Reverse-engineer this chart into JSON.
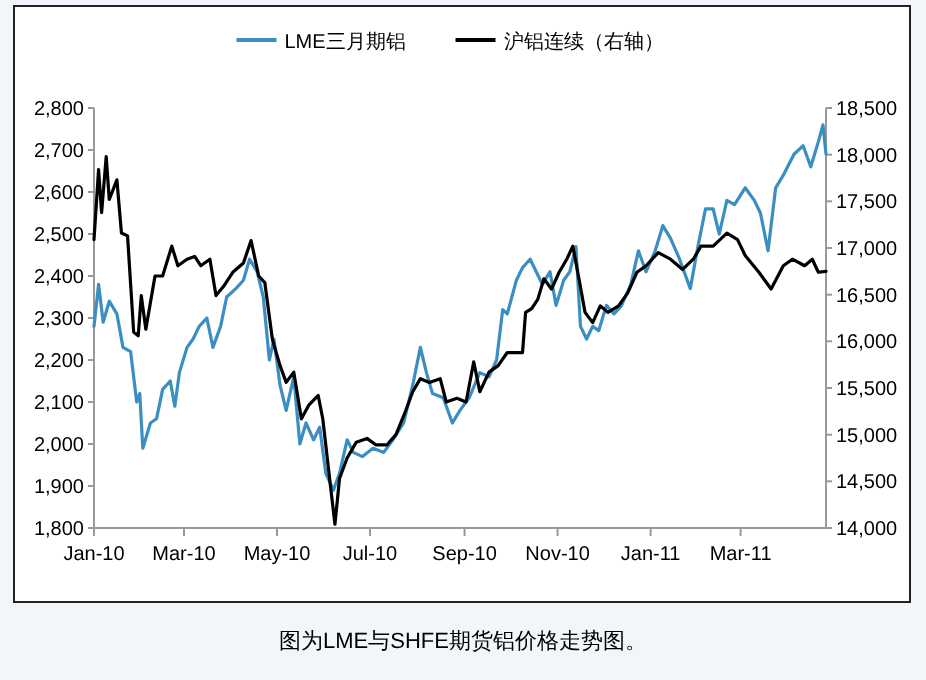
{
  "chart_data": {
    "type": "line",
    "series": [
      {
        "name": "LME三月期铝",
        "color": "#3b8ec2",
        "x": [
          "2010-01-01",
          "2010-01-04",
          "2010-01-07",
          "2010-01-11",
          "2010-01-16",
          "2010-01-20",
          "2010-01-25",
          "2010-01-29",
          "2010-01-31",
          "2010-02-02",
          "2010-02-07",
          "2010-02-11",
          "2010-02-15",
          "2010-02-20",
          "2010-02-23",
          "2010-02-26",
          "2010-03-03",
          "2010-03-07",
          "2010-03-11",
          "2010-03-16",
          "2010-03-20",
          "2010-03-25",
          "2010-03-29",
          "2010-04-04",
          "2010-04-09",
          "2010-04-13",
          "2010-04-18",
          "2010-04-22",
          "2010-04-26",
          "2010-04-29",
          "2010-05-03",
          "2010-05-07",
          "2010-05-12",
          "2010-05-16",
          "2010-05-20",
          "2010-05-25",
          "2010-05-29",
          "2010-06-02",
          "2010-06-07",
          "2010-06-11",
          "2010-06-16",
          "2010-06-20",
          "2010-06-26",
          "2010-07-03",
          "2010-07-10",
          "2010-07-16",
          "2010-07-23",
          "2010-07-29",
          "2010-08-03",
          "2010-08-07",
          "2010-08-11",
          "2010-08-18",
          "2010-08-24",
          "2010-08-29",
          "2010-09-04",
          "2010-09-11",
          "2010-09-17",
          "2010-09-22",
          "2010-09-26",
          "2010-09-29",
          "2010-10-05",
          "2010-10-09",
          "2010-10-14",
          "2010-10-18",
          "2010-10-22",
          "2010-10-27",
          "2010-10-31",
          "2010-11-05",
          "2010-11-09",
          "2010-11-13",
          "2010-11-16",
          "2010-11-20",
          "2010-11-24",
          "2010-11-28",
          "2010-12-03",
          "2010-12-08",
          "2010-12-13",
          "2010-12-19",
          "2010-12-24",
          "2010-12-29",
          "2011-01-04",
          "2011-01-09",
          "2011-01-14",
          "2011-01-20",
          "2011-01-27",
          "2011-02-01",
          "2011-02-06",
          "2011-02-11",
          "2011-02-15",
          "2011-02-20",
          "2011-02-25",
          "2011-03-04",
          "2011-03-10",
          "2011-03-14",
          "2011-03-19",
          "2011-03-24",
          "2011-03-29",
          "2011-04-05",
          "2011-04-11",
          "2011-04-16",
          "2011-04-21",
          "2011-04-24",
          "2011-04-26"
        ],
        "values": [
          2280,
          2380,
          2290,
          2340,
          2310,
          2230,
          2220,
          2100,
          2120,
          1990,
          2050,
          2060,
          2130,
          2150,
          2090,
          2170,
          2230,
          2250,
          2280,
          2300,
          2230,
          2280,
          2350,
          2370,
          2390,
          2440,
          2410,
          2350,
          2200,
          2250,
          2140,
          2080,
          2160,
          2000,
          2050,
          2010,
          2040,
          1930,
          1890,
          1930,
          2010,
          1980,
          1970,
          1990,
          1980,
          2010,
          2050,
          2140,
          2230,
          2170,
          2120,
          2110,
          2050,
          2080,
          2110,
          2170,
          2160,
          2200,
          2320,
          2310,
          2390,
          2420,
          2440,
          2410,
          2380,
          2410,
          2330,
          2390,
          2410,
          2470,
          2280,
          2250,
          2280,
          2270,
          2330,
          2310,
          2330,
          2380,
          2460,
          2410,
          2460,
          2520,
          2490,
          2440,
          2370,
          2470,
          2560,
          2560,
          2500,
          2580,
          2570,
          2610,
          2580,
          2550,
          2460,
          2610,
          2640,
          2690,
          2710,
          2660,
          2720,
          2760,
          2690
        ]
      },
      {
        "name": "沪铝连续（右轴）",
        "color": "#000000",
        "axis": "y2",
        "x": [
          "2010-01-01",
          "2010-01-04",
          "2010-01-06",
          "2010-01-09",
          "2010-01-11",
          "2010-01-16",
          "2010-01-19",
          "2010-01-23",
          "2010-01-27",
          "2010-01-30",
          "2010-02-01",
          "2010-02-04",
          "2010-02-10",
          "2010-02-15",
          "2010-02-21",
          "2010-02-25",
          "2010-03-03",
          "2010-03-08",
          "2010-03-12",
          "2010-03-18",
          "2010-03-22",
          "2010-03-27",
          "2010-04-02",
          "2010-04-09",
          "2010-04-14",
          "2010-04-19",
          "2010-04-23",
          "2010-04-28",
          "2010-05-03",
          "2010-05-07",
          "2010-05-12",
          "2010-05-17",
          "2010-05-22",
          "2010-05-28",
          "2010-05-31",
          "2010-06-05",
          "2010-06-08",
          "2010-06-11",
          "2010-06-16",
          "2010-06-22",
          "2010-06-29",
          "2010-07-05",
          "2010-07-12",
          "2010-07-18",
          "2010-07-24",
          "2010-07-29",
          "2010-08-03",
          "2010-08-09",
          "2010-08-16",
          "2010-08-20",
          "2010-08-27",
          "2010-09-02",
          "2010-09-07",
          "2010-09-11",
          "2010-09-17",
          "2010-09-23",
          "2010-09-29",
          "2010-10-09",
          "2010-10-11",
          "2010-10-15",
          "2010-10-19",
          "2010-10-23",
          "2010-10-28",
          "2010-11-02",
          "2010-11-07",
          "2010-11-11",
          "2010-11-15",
          "2010-11-19",
          "2010-11-24",
          "2010-11-29",
          "2010-12-04",
          "2010-12-11",
          "2010-12-17",
          "2010-12-23",
          "2010-12-29",
          "2011-01-06",
          "2011-01-14",
          "2011-01-22",
          "2011-01-29",
          "2011-02-03",
          "2011-02-11",
          "2011-02-20",
          "2011-02-27",
          "2011-03-04",
          "2011-03-13",
          "2011-03-21",
          "2011-03-29",
          "2011-04-04",
          "2011-04-12",
          "2011-04-17",
          "2011-04-21",
          "2011-04-26"
        ],
        "values": [
          17090,
          17840,
          17380,
          17980,
          17520,
          17730,
          17160,
          17130,
          16100,
          16060,
          16490,
          16130,
          16700,
          16700,
          17020,
          16810,
          16880,
          16910,
          16810,
          16880,
          16490,
          16590,
          16740,
          16840,
          17080,
          16700,
          16630,
          16020,
          15740,
          15560,
          15670,
          15170,
          15320,
          15420,
          15170,
          14460,
          14040,
          14530,
          14750,
          14920,
          14960,
          14890,
          14890,
          15000,
          15240,
          15460,
          15600,
          15560,
          15600,
          15350,
          15390,
          15350,
          15780,
          15460,
          15670,
          15740,
          15880,
          15880,
          16310,
          16350,
          16450,
          16670,
          16560,
          16740,
          16880,
          17020,
          16670,
          16310,
          16200,
          16380,
          16310,
          16380,
          16520,
          16740,
          16810,
          16950,
          16880,
          16770,
          16880,
          17020,
          17020,
          17160,
          17090,
          16920,
          16740,
          16560,
          16810,
          16880,
          16810,
          16880,
          16740,
          16750
        ]
      }
    ],
    "xlim": [
      "2010-01-01",
      "2011-04-26"
    ],
    "xticks": [
      {
        "value": "2010-01-01",
        "label": "Jan-10"
      },
      {
        "value": "2010-03-01",
        "label": "Mar-10"
      },
      {
        "value": "2010-05-01",
        "label": "May-10"
      },
      {
        "value": "2010-07-01",
        "label": "Jul-10"
      },
      {
        "value": "2010-09-01",
        "label": "Sep-10"
      },
      {
        "value": "2010-11-01",
        "label": "Nov-10"
      },
      {
        "value": "2011-01-01",
        "label": "Jan-11"
      },
      {
        "value": "2011-03-01",
        "label": "Mar-11"
      }
    ],
    "ylim": [
      1800,
      2800
    ],
    "yticks": [
      {
        "value": 1800,
        "label": "1,800"
      },
      {
        "value": 1900,
        "label": "1,900"
      },
      {
        "value": 2000,
        "label": "2,000"
      },
      {
        "value": 2100,
        "label": "2,100"
      },
      {
        "value": 2200,
        "label": "2,200"
      },
      {
        "value": 2300,
        "label": "2,300"
      },
      {
        "value": 2400,
        "label": "2,400"
      },
      {
        "value": 2500,
        "label": "2,500"
      },
      {
        "value": 2600,
        "label": "2,600"
      },
      {
        "value": 2700,
        "label": "2,700"
      },
      {
        "value": 2800,
        "label": "2,800"
      }
    ],
    "y2lim": [
      14000,
      18500
    ],
    "y2ticks": [
      {
        "value": 14000,
        "label": "14,000"
      },
      {
        "value": 14500,
        "label": "14,500"
      },
      {
        "value": 15000,
        "label": "15,000"
      },
      {
        "value": 15500,
        "label": "15,500"
      },
      {
        "value": 16000,
        "label": "16,000"
      },
      {
        "value": 16500,
        "label": "16,500"
      },
      {
        "value": 17000,
        "label": "17,000"
      },
      {
        "value": 17500,
        "label": "17,500"
      },
      {
        "value": 18000,
        "label": "18,000"
      },
      {
        "value": 18500,
        "label": "18,500"
      }
    ],
    "legend": "top",
    "grid": false,
    "marker": "none",
    "line_style": "solid",
    "annotations": [
      "图为LME与SHFE期货铝价格走势图。"
    ]
  }
}
